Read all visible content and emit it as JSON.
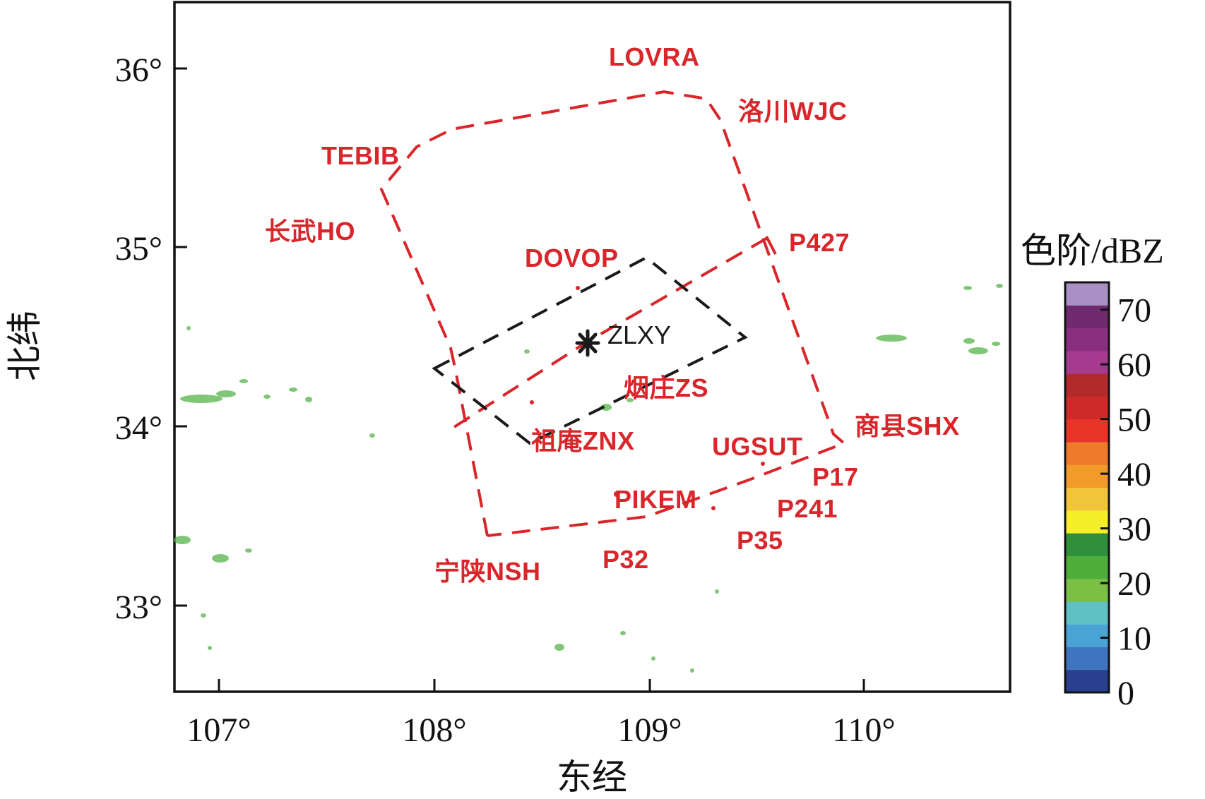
{
  "map": {
    "x_axis": {
      "label": "东经",
      "ticks": [
        "107°",
        "108°",
        "109°",
        "110°"
      ]
    },
    "y_axis": {
      "label": "北纬",
      "ticks": [
        "33°",
        "34°",
        "35°",
        "36°"
      ]
    },
    "center_station": "ZLXY",
    "waypoints": [
      {
        "id": "lovra",
        "label": "LOVRA"
      },
      {
        "id": "luochuan",
        "label": "洛川WJC"
      },
      {
        "id": "tebib",
        "label": "TEBIB"
      },
      {
        "id": "changwu",
        "label": "长武HO"
      },
      {
        "id": "dovop",
        "label": "DOVOP"
      },
      {
        "id": "p427",
        "label": "P427"
      },
      {
        "id": "yanzhuang",
        "label": "烟庄ZS"
      },
      {
        "id": "zuan",
        "label": "祖庵ZNX"
      },
      {
        "id": "ugsut",
        "label": "UGSUT"
      },
      {
        "id": "shangxian",
        "label": "商县SHX"
      },
      {
        "id": "p17",
        "label": "P17"
      },
      {
        "id": "pikem",
        "label": "PIKEM"
      },
      {
        "id": "p241",
        "label": "P241"
      },
      {
        "id": "p35",
        "label": "P35"
      },
      {
        "id": "p32",
        "label": "P32"
      },
      {
        "id": "ningshan",
        "label": "宁陕NSH"
      }
    ],
    "colors": {
      "route": "#d9262b",
      "sector": "#1a1a1a",
      "echo": "#55b54a"
    }
  },
  "colorbar": {
    "title": "色阶/dBZ",
    "ticks": [
      "0",
      "10",
      "20",
      "30",
      "40",
      "50",
      "60",
      "70"
    ],
    "colors": [
      "#2b3f8f",
      "#3f74c0",
      "#4aa3d5",
      "#5fc1c4",
      "#7bbf45",
      "#4fae3a",
      "#2f8f3a",
      "#f4ef2a",
      "#f2c43a",
      "#f29a2a",
      "#ef7a2a",
      "#e8352a",
      "#cf2a2a",
      "#b22a2a",
      "#a53a8f",
      "#8a2f7f",
      "#6f2a6f",
      "#a890c5"
    ]
  }
}
